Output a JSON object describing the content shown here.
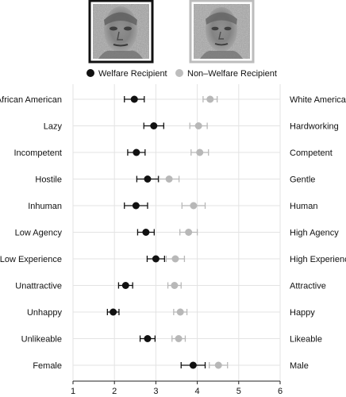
{
  "chart_data": {
    "type": "scatter",
    "orientation": "horizontal-dot-with-error-bars",
    "title": "",
    "xlabel": "",
    "ylabel": "",
    "xlim": [
      1,
      6
    ],
    "xticks": [
      1,
      2,
      3,
      4,
      5,
      6
    ],
    "grid": true,
    "legend_position": "top",
    "categories_left": [
      "African American",
      "Lazy",
      "Incompetent",
      "Hostile",
      "Inhuman",
      "Low Agency",
      "Low Experience",
      "Unattractive",
      "Unhappy",
      "Unlikeable",
      "Female"
    ],
    "categories_right": [
      "White American",
      "Hardworking",
      "Competent",
      "Gentle",
      "Human",
      "High Agency",
      "High Experience",
      "Attractive",
      "Happy",
      "Likeable",
      "Male"
    ],
    "series": [
      {
        "name": "Welfare Recipient",
        "color": "#111111",
        "values": [
          2.48,
          2.95,
          2.53,
          2.8,
          2.52,
          2.76,
          3.0,
          2.27,
          1.97,
          2.8,
          3.9
        ],
        "errors": [
          0.24,
          0.24,
          0.21,
          0.26,
          0.28,
          0.2,
          0.21,
          0.17,
          0.14,
          0.18,
          0.29
        ]
      },
      {
        "name": "Non–Welfare Recipient",
        "color": "#b8b8b8",
        "values": [
          4.31,
          4.03,
          4.06,
          3.32,
          3.91,
          3.79,
          3.47,
          3.45,
          3.59,
          3.55,
          4.51
        ],
        "errors": [
          0.17,
          0.21,
          0.21,
          0.24,
          0.28,
          0.21,
          0.22,
          0.16,
          0.16,
          0.16,
          0.22
        ]
      }
    ]
  },
  "images": [
    {
      "name": "welfare-face",
      "frame_color": "#111111"
    },
    {
      "name": "non-welfare-face",
      "frame_color": "#b5b5b5"
    }
  ]
}
